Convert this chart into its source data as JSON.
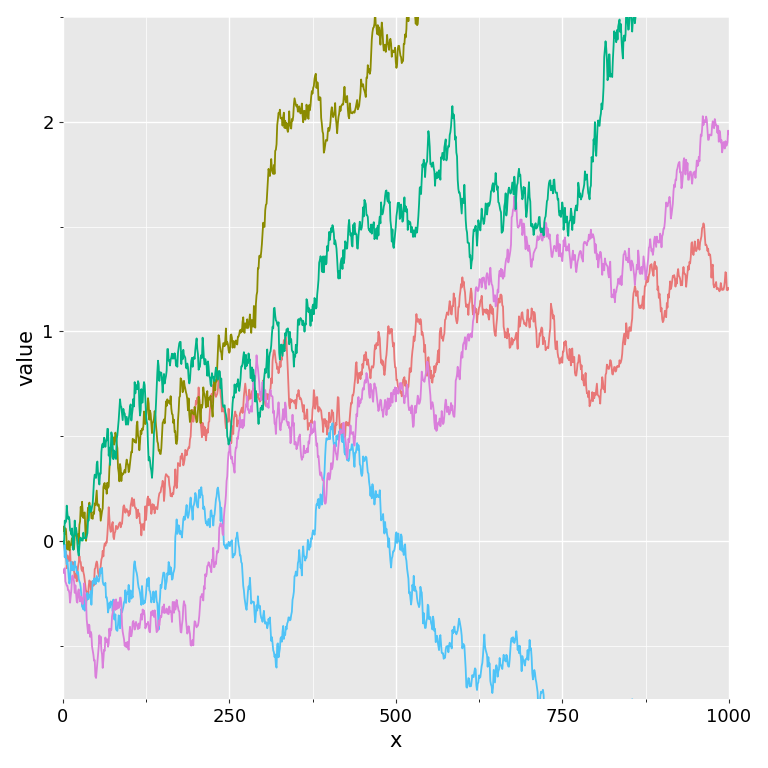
{
  "title": "",
  "xlabel": "x",
  "ylabel": "value",
  "xlim": [
    0,
    1000
  ],
  "ylim": [
    -0.75,
    2.5
  ],
  "n_points": 1000,
  "colors": [
    "#E87777",
    "#4FC3F7",
    "#DA7FDB",
    "#8B8B00",
    "#00B386"
  ],
  "background_color": "#E8E8E8",
  "panel_color": "#E8E8E8",
  "grid_color": "#FFFFFF",
  "tick_label_size": 13,
  "axis_label_size": 15,
  "line_width": 1.3,
  "xticks": [
    0,
    250,
    500,
    750,
    1000
  ],
  "yticks": [
    0,
    1,
    2
  ]
}
